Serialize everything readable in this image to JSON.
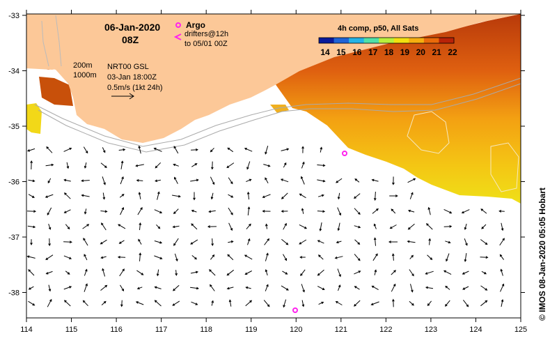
{
  "header": {
    "date": "06-Jan-2020",
    "time": "08Z"
  },
  "argo_legend": {
    "title": "Argo",
    "line1": "drifters@12h",
    "line2": "to 05/01 00Z"
  },
  "sst_legend": {
    "title": "4h comp, p50, All Sats",
    "ticks": [
      "14",
      "15",
      "16",
      "17",
      "18",
      "19",
      "20",
      "21",
      "22"
    ],
    "colors": [
      "#0a1a9a",
      "#1f63d6",
      "#23b3e6",
      "#4fe0a8",
      "#b8ef3c",
      "#f2e010",
      "#f6ae10",
      "#ea6a0a",
      "#b82208"
    ]
  },
  "currents_legend": {
    "contour_1": "200m",
    "contour_2": "1000m",
    "product": "NRT00 GSL",
    "analysis_time": "03-Jan 18:00Z",
    "arrow_scale": "0.5m/s (1kt 24h)"
  },
  "axes": {
    "lon_ticks": [
      "114",
      "115",
      "116",
      "117",
      "118",
      "119",
      "120",
      "121",
      "122",
      "123",
      "124",
      "125"
    ],
    "lat_ticks": [
      "-33",
      "-34",
      "-35",
      "-36",
      "-37",
      "-38"
    ]
  },
  "credit": "© IMOS 08-Jan-2020 05:05 Hobart",
  "colors": {
    "land": "#fcc898",
    "sea": "#ffffff",
    "argo": "#ff22ee",
    "isobath": "#aaaaaa"
  }
}
